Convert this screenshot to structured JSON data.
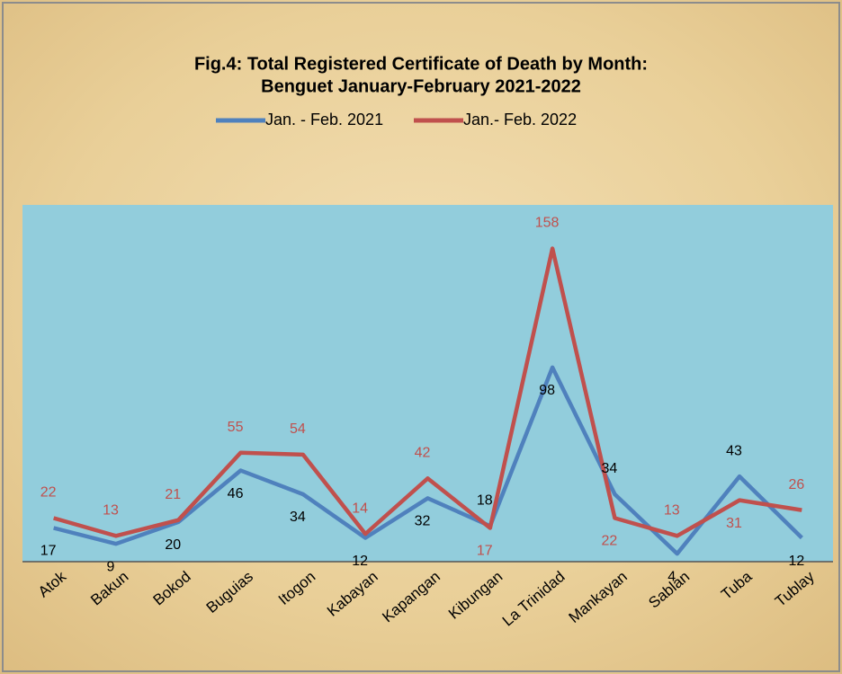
{
  "chart_data": {
    "type": "line",
    "title": [
      "Fig.4: Total Registered Certificate of Death by Month:",
      "Benguet January-February 2021-2022"
    ],
    "categories": [
      "Atok",
      "Bakun",
      "Bokod",
      "Buguias",
      "Itogon",
      "Kabayan",
      "Kapangan",
      "Kibungan",
      "La Trinidad",
      "Mankayan",
      "Sablan",
      "Tuba",
      "Tublay"
    ],
    "series": [
      {
        "name": "Jan. - Feb. 2021",
        "color": "#4f81bd",
        "values": [
          17,
          9,
          20,
          46,
          34,
          12,
          32,
          18,
          98,
          34,
          4,
          43,
          12
        ]
      },
      {
        "name": "Jan.- Feb. 2022",
        "color": "#c0504d",
        "values": [
          22,
          13,
          21,
          55,
          54,
          14,
          42,
          17,
          158,
          22,
          13,
          31,
          26
        ]
      }
    ],
    "ylim": [
      0,
      180
    ],
    "legend": "top",
    "plot_color": "#92cddc"
  }
}
